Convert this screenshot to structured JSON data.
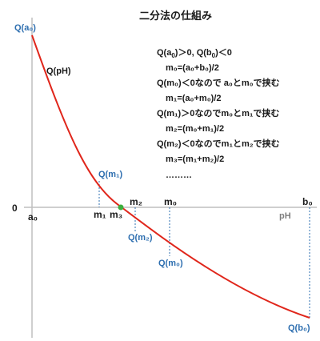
{
  "title": "二分法の仕組み",
  "curve_label": "Q(pH)",
  "axis_label": "pH",
  "origin_label": "0",
  "explanation": [
    {
      "pre": "Q(a",
      "sub": "0",
      "post": ")＞0,  Q(b",
      "sub2": "0",
      "post2": ")＜0"
    },
    {
      "text": "m₀=(a₀+b₀)/2"
    },
    {
      "text": "Q(m₀)＜0なので a₀とm₀で挟む"
    },
    {
      "text": "m₁=(a₀+m₀)/2"
    },
    {
      "text": "Q(m₁)＞0なのでm₀とm₁で挟む"
    },
    {
      "text": "m₂=(m₀+m₁)/2"
    },
    {
      "text": "Q(m₂)＜0なのでm₁とm₂で挟む"
    },
    {
      "text": "m₃=(m₁+m₂)/2"
    },
    {
      "text": "………"
    }
  ],
  "points": {
    "a0": {
      "label": "Q(a₀)",
      "axis": "a₀"
    },
    "b0": {
      "label": "Q(b₀)",
      "axis": "b₀"
    },
    "m0": {
      "label": "Q(m₀)",
      "axis": "m₀"
    },
    "m1": {
      "label": "Q(m₁)",
      "axis": "m₁"
    },
    "m2": {
      "label": "Q(m₂)",
      "axis": "m₂"
    },
    "m3": {
      "axis": "m₃"
    }
  },
  "colors": {
    "curve": "#e0261b",
    "axis": "#bfbfbf",
    "guide": "#2e6fb0",
    "root": "#3cae3c",
    "blue_text": "#2e6fb0"
  }
}
